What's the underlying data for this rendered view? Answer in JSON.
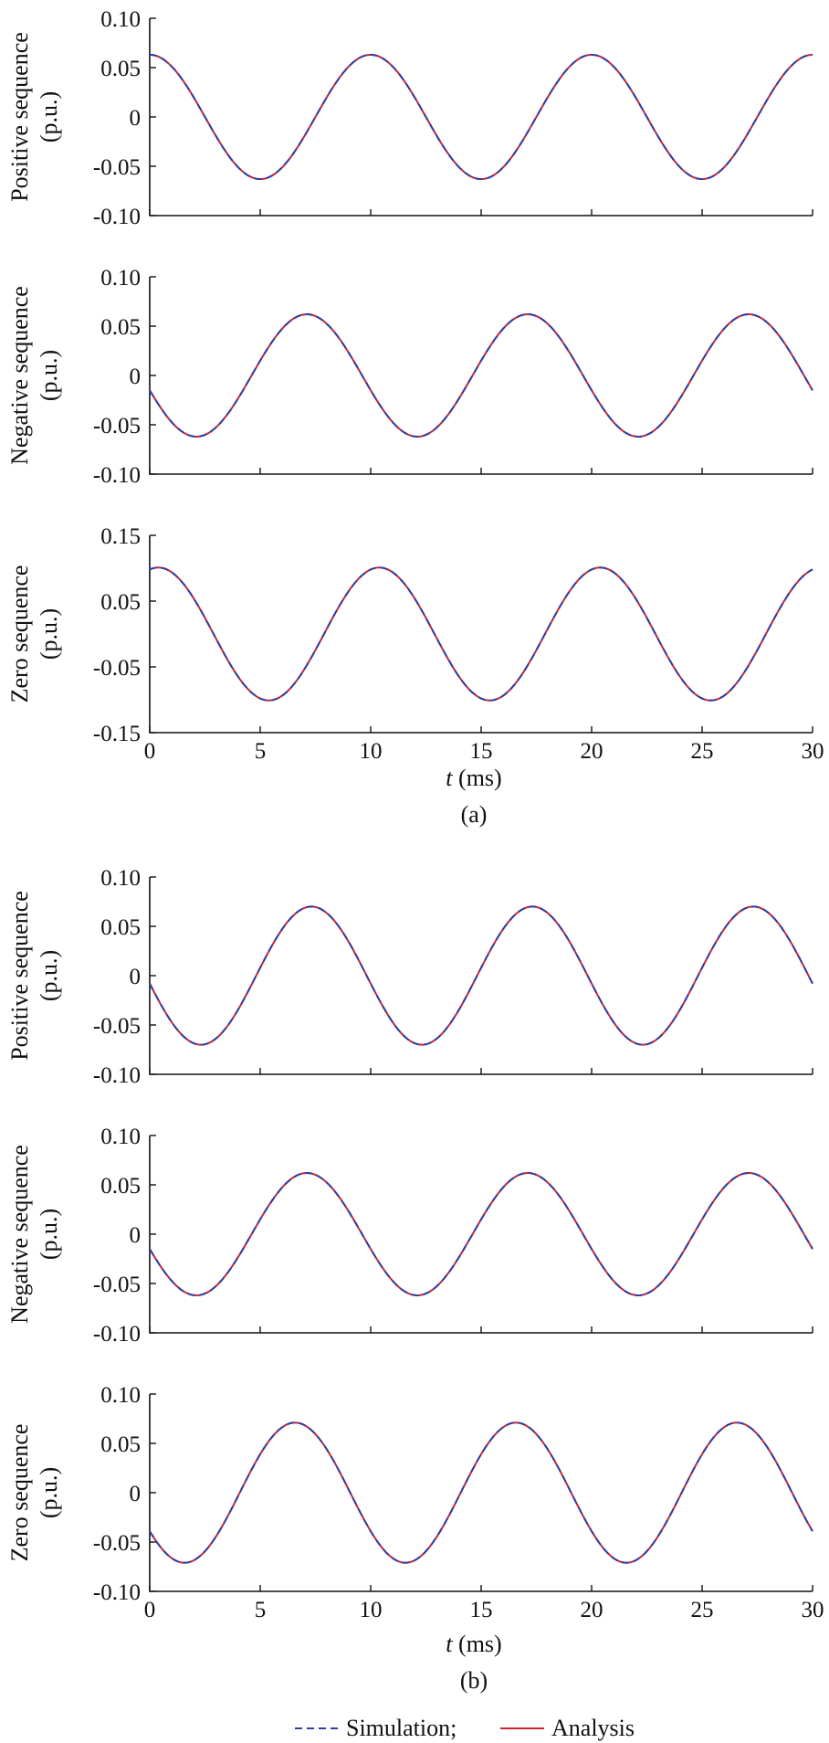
{
  "colors": {
    "simulation": "#2b3fa8",
    "analysis": "#cc2233"
  },
  "legend": {
    "simulation": "Simulation;",
    "analysis": "Analysis"
  },
  "captions": [
    "(a)",
    "(b)"
  ],
  "x_axis": {
    "label_italic": "t",
    "label_unit": " (ms)",
    "ticks": [
      0,
      5,
      10,
      15,
      20,
      25,
      30
    ]
  },
  "chart_data": [
    {
      "type": "line",
      "panel": "(a)",
      "ylabel": [
        "Positive sequence",
        "(p.u.)"
      ],
      "ylim": [
        -0.1,
        0.1
      ],
      "yticks": [
        "-0.10",
        "-0.05",
        "0",
        "0.05",
        "0.10"
      ],
      "xlim": [
        0,
        30
      ],
      "amplitude": 0.063,
      "period_ms": 10,
      "value_at_t0": 0.063,
      "series": [
        {
          "name": "Simulation",
          "style": "dashed"
        },
        {
          "name": "Analysis",
          "style": "solid"
        }
      ]
    },
    {
      "type": "line",
      "panel": "(a)",
      "ylabel": [
        "Negative sequence",
        "(p.u.)"
      ],
      "ylim": [
        -0.1,
        0.1
      ],
      "yticks": [
        "-0.10",
        "-0.05",
        "0",
        "0.05",
        "0.10"
      ],
      "xlim": [
        0,
        30
      ],
      "amplitude": 0.062,
      "period_ms": 10,
      "value_at_t0": -0.015,
      "falling_at_t0": true,
      "series": [
        {
          "name": "Simulation",
          "style": "dashed"
        },
        {
          "name": "Analysis",
          "style": "solid"
        }
      ]
    },
    {
      "type": "line",
      "panel": "(a)",
      "ylabel": [
        "Zero sequence",
        "(p.u.)"
      ],
      "ylim": [
        -0.15,
        0.15
      ],
      "yticks": [
        "-0.15",
        "-0.05",
        "0.05",
        "0.15"
      ],
      "xlim": [
        0,
        30
      ],
      "amplitude": 0.101,
      "period_ms": 10,
      "value_at_t0": 0.098,
      "rising_at_t0": true,
      "series": [
        {
          "name": "Simulation",
          "style": "dashed"
        },
        {
          "name": "Analysis",
          "style": "solid"
        }
      ]
    },
    {
      "type": "line",
      "panel": "(b)",
      "ylabel": [
        "Positive sequence",
        "(p.u.)"
      ],
      "ylim": [
        -0.1,
        0.1
      ],
      "yticks": [
        "-0.10",
        "-0.05",
        "0",
        "0.05",
        "0.10"
      ],
      "xlim": [
        0,
        30
      ],
      "amplitude": 0.07,
      "period_ms": 10,
      "value_at_t0": -0.008,
      "falling_at_t0": true,
      "series": [
        {
          "name": "Simulation",
          "style": "dashed"
        },
        {
          "name": "Analysis",
          "style": "solid"
        }
      ]
    },
    {
      "type": "line",
      "panel": "(b)",
      "ylabel": [
        "Negative sequence",
        "(p.u.)"
      ],
      "ylim": [
        -0.1,
        0.1
      ],
      "yticks": [
        "-0.10",
        "-0.05",
        "0",
        "0.05",
        "0.10"
      ],
      "xlim": [
        0,
        30
      ],
      "amplitude": 0.062,
      "period_ms": 10,
      "value_at_t0": -0.015,
      "falling_at_t0": true,
      "series": [
        {
          "name": "Simulation",
          "style": "dashed"
        },
        {
          "name": "Analysis",
          "style": "solid"
        }
      ]
    },
    {
      "type": "line",
      "panel": "(b)",
      "ylabel": [
        "Zero sequence",
        "(p.u.)"
      ],
      "ylim": [
        -0.1,
        0.1
      ],
      "yticks": [
        "-0.10",
        "-0.05",
        "0",
        "0.05",
        "0.10"
      ],
      "xlim": [
        0,
        30
      ],
      "amplitude": 0.071,
      "period_ms": 10,
      "value_at_t0": -0.039,
      "falling_at_t0": true,
      "series": [
        {
          "name": "Simulation",
          "style": "dashed"
        },
        {
          "name": "Analysis",
          "style": "solid"
        }
      ]
    }
  ]
}
